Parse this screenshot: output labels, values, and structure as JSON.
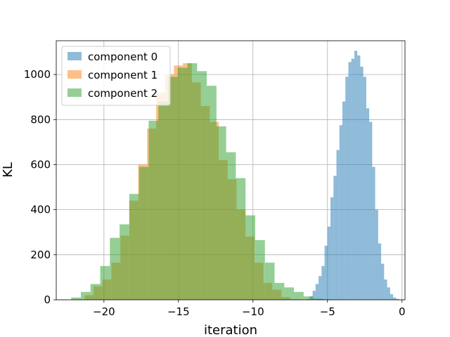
{
  "chart_data": {
    "type": "bar",
    "subtype": "histogram",
    "xlabel": "iteration",
    "ylabel": "KL",
    "xlim": [
      -23.2,
      0.2
    ],
    "ylim": [
      0,
      1150
    ],
    "xticks": [
      -20,
      -15,
      -10,
      -5,
      0
    ],
    "xtick_labels": [
      "−20",
      "−15",
      "−10",
      "−5",
      "0"
    ],
    "yticks": [
      0,
      200,
      400,
      600,
      800,
      1000
    ],
    "ytick_labels": [
      "0",
      "200",
      "400",
      "600",
      "800",
      "1000"
    ],
    "grid": true,
    "legend_position": "upper left",
    "overlay_opacity": 0.5,
    "series": [
      {
        "name": "component 0",
        "color": "#1f77b4",
        "bin_start": -6.4,
        "bin_width": 0.2,
        "counts": [
          3,
          15,
          40,
          70,
          105,
          150,
          240,
          325,
          455,
          550,
          665,
          775,
          880,
          990,
          1055,
          1070,
          1105,
          1085,
          1035,
          990,
          850,
          790,
          590,
          400,
          250,
          160,
          90,
          55,
          25,
          10,
          4
        ]
      },
      {
        "name": "component 1",
        "color": "#ff7f0e",
        "bin_start": -21.9,
        "bin_width": 0.6,
        "counts": [
          2,
          20,
          60,
          90,
          165,
          285,
          440,
          600,
          760,
          920,
          1000,
          1040,
          1050,
          965,
          860,
          790,
          620,
          535,
          400,
          280,
          165,
          75,
          45,
          12,
          3
        ]
      },
      {
        "name": "component 2",
        "color": "#2ca02c",
        "bin_start": -22.2,
        "bin_width": 0.65,
        "counts": [
          10,
          35,
          70,
          150,
          275,
          335,
          470,
          590,
          795,
          880,
          990,
          1030,
          1050,
          1015,
          950,
          770,
          655,
          540,
          375,
          265,
          165,
          75,
          55,
          35,
          15,
          5,
          2
        ]
      }
    ]
  }
}
